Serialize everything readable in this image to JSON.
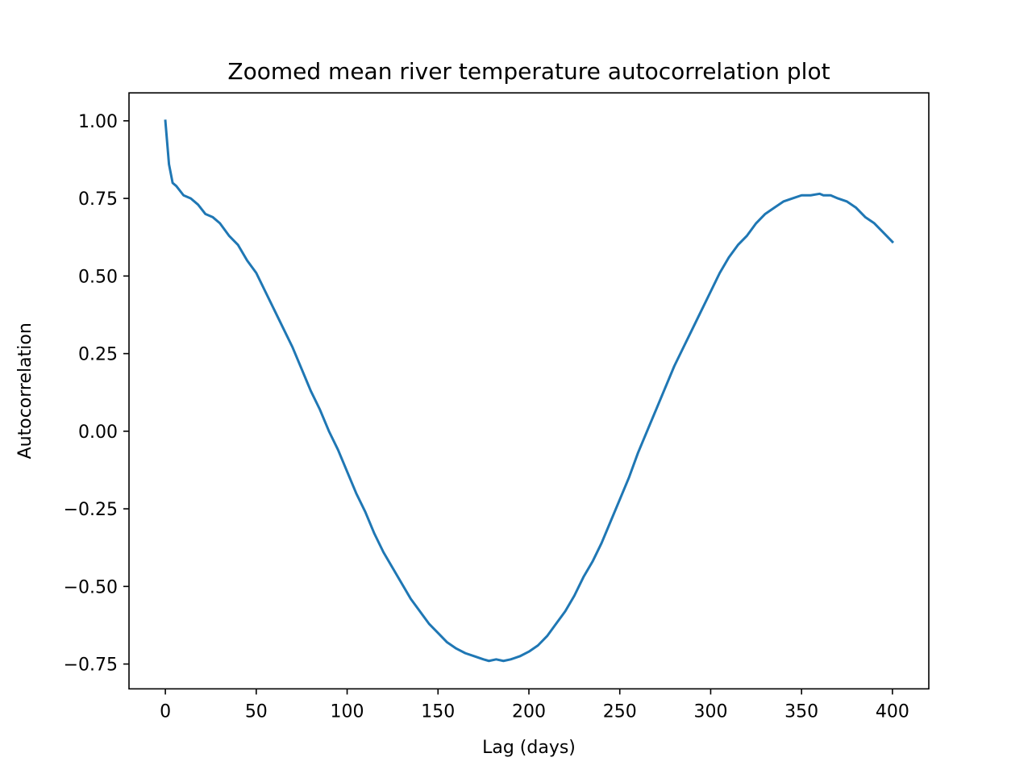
{
  "chart_data": {
    "type": "line",
    "title": "Zoomed mean river temperature autocorrelation plot",
    "xlabel": "Lag (days)",
    "ylabel": "Autocorrelation",
    "xlim": [
      -20,
      420
    ],
    "ylim": [
      -0.83,
      1.09
    ],
    "xticks": [
      0,
      50,
      100,
      150,
      200,
      250,
      300,
      350,
      400
    ],
    "xtick_labels": [
      "0",
      "50",
      "100",
      "150",
      "200",
      "250",
      "300",
      "350",
      "400"
    ],
    "yticks": [
      1.0,
      0.75,
      0.5,
      0.25,
      0.0,
      -0.25,
      -0.5,
      -0.75
    ],
    "ytick_labels": [
      "1.00",
      "0.75",
      "0.50",
      "0.25",
      "0.00",
      "−0.25",
      "−0.50",
      "−0.75"
    ],
    "grid": false,
    "line_color": "#1f77b4",
    "series": [
      {
        "x": [
          0,
          2,
          4,
          6,
          10,
          14,
          18,
          22,
          26,
          30,
          35,
          40,
          45,
          50,
          55,
          60,
          65,
          70,
          75,
          80,
          85,
          90,
          95,
          100,
          105,
          110,
          115,
          120,
          125,
          130,
          135,
          140,
          145,
          150,
          155,
          160,
          165,
          170,
          175,
          178,
          182,
          186,
          190,
          195,
          200,
          205,
          210,
          215,
          220,
          225,
          230,
          235,
          240,
          245,
          250,
          255,
          260,
          265,
          270,
          275,
          280,
          285,
          290,
          295,
          300,
          305,
          310,
          315,
          320,
          325,
          330,
          335,
          340,
          345,
          350,
          355,
          360,
          362,
          366,
          370,
          375,
          380,
          385,
          390,
          395,
          400
        ],
        "y": [
          1.0,
          0.86,
          0.8,
          0.79,
          0.76,
          0.75,
          0.73,
          0.7,
          0.69,
          0.67,
          0.63,
          0.6,
          0.55,
          0.51,
          0.45,
          0.39,
          0.33,
          0.27,
          0.2,
          0.13,
          0.07,
          0.0,
          -0.06,
          -0.13,
          -0.2,
          -0.26,
          -0.33,
          -0.39,
          -0.44,
          -0.49,
          -0.54,
          -0.58,
          -0.62,
          -0.65,
          -0.68,
          -0.7,
          -0.715,
          -0.725,
          -0.735,
          -0.74,
          -0.735,
          -0.74,
          -0.735,
          -0.725,
          -0.71,
          -0.69,
          -0.66,
          -0.62,
          -0.58,
          -0.53,
          -0.47,
          -0.42,
          -0.36,
          -0.29,
          -0.22,
          -0.15,
          -0.07,
          0.0,
          0.07,
          0.14,
          0.21,
          0.27,
          0.33,
          0.39,
          0.45,
          0.51,
          0.56,
          0.6,
          0.63,
          0.67,
          0.7,
          0.72,
          0.74,
          0.75,
          0.76,
          0.76,
          0.765,
          0.76,
          0.76,
          0.75,
          0.74,
          0.72,
          0.69,
          0.67,
          0.64,
          0.61
        ]
      }
    ]
  }
}
